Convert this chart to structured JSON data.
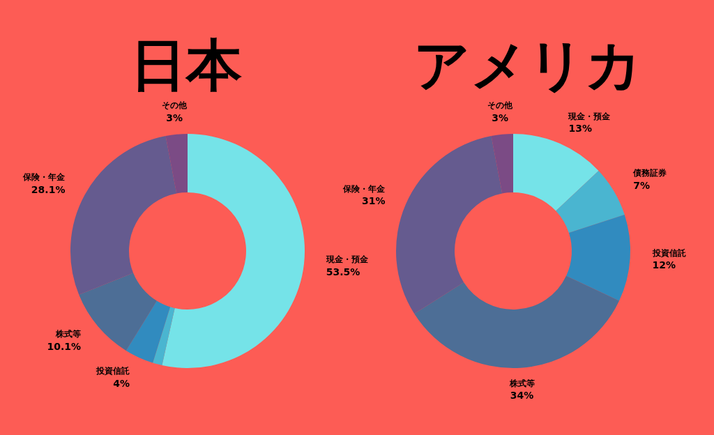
{
  "chart_data": [
    {
      "type": "donut",
      "title": "日本",
      "categories": [
        "現金・預金",
        null,
        "投資信託",
        "株式等",
        "保険・年金",
        "その他"
      ],
      "values": [
        53.5,
        1.3,
        4,
        10.1,
        28.1,
        3
      ],
      "colors": [
        "#75e3e8",
        "#4ab5d0",
        "#318bbf",
        "#4d6e96",
        "#655b8f",
        "#7b4b85"
      ],
      "value_labels": [
        "53.5%",
        null,
        "4%",
        "10.1%",
        "28.1%",
        "3%"
      ]
    },
    {
      "type": "donut",
      "title": "アメリカ",
      "categories": [
        "現金・預金",
        "債務証券",
        "投資信託",
        "株式等",
        "保険・年金",
        "その他"
      ],
      "values": [
        13,
        7,
        12,
        34,
        31,
        3
      ],
      "colors": [
        "#75e3e8",
        "#4ab5d0",
        "#318bbf",
        "#4d6e96",
        "#655b8f",
        "#7b4b85"
      ],
      "value_labels": [
        "13%",
        "7%",
        "12%",
        "34%",
        "31%",
        "3%"
      ]
    }
  ]
}
